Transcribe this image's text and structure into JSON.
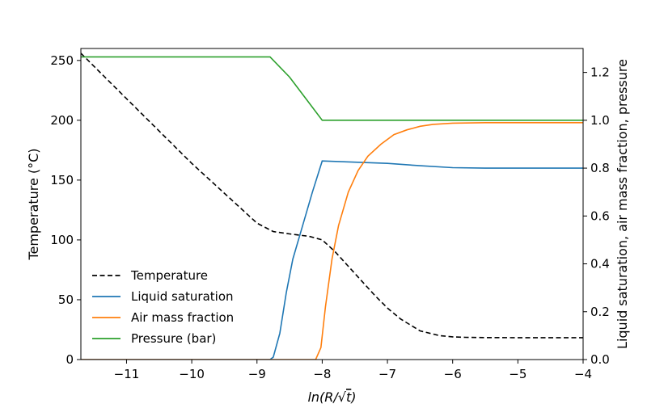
{
  "chart_data": {
    "type": "line",
    "xlabel": "ln(R/√t)",
    "xlabel_parts": {
      "prefix": "ln(R/",
      "radical": "√",
      "radicand": "t",
      "suffix": ")"
    },
    "ylabel_left": "Temperature (°C)",
    "ylabel_right": "Liquid saturation, air mass fraction, pressure",
    "xlim": [
      -11.7,
      -4
    ],
    "ylim_left": [
      0,
      260
    ],
    "ylim_right": [
      0,
      1.3
    ],
    "xticks": [
      -11,
      -10,
      -9,
      -8,
      -7,
      -6,
      -5,
      -4
    ],
    "xtick_labels": [
      "−11",
      "−10",
      "−9",
      "−8",
      "−7",
      "−6",
      "−5",
      "−4"
    ],
    "yticks_left": [
      0,
      50,
      100,
      150,
      200,
      250
    ],
    "ytick_labels_left": [
      "0",
      "50",
      "100",
      "150",
      "200",
      "250"
    ],
    "yticks_right": [
      0.0,
      0.2,
      0.4,
      0.6,
      0.8,
      1.0,
      1.2
    ],
    "ytick_labels_right": [
      "0.0",
      "0.2",
      "0.4",
      "0.6",
      "0.8",
      "1.0",
      "1.2"
    ],
    "grid": false,
    "legend_position": "lower-left",
    "series": [
      {
        "name": "Temperature",
        "axis": "left",
        "color": "#000000",
        "dash": "dashed",
        "x": [
          -11.7,
          -11.0,
          -10.0,
          -9.0,
          -8.75,
          -8.5,
          -8.2,
          -8.0,
          -7.8,
          -7.5,
          -7.2,
          -7.0,
          -6.8,
          -6.5,
          -6.2,
          -6.0,
          -5.8,
          -5.5,
          -5.0,
          -4.5,
          -4.0
        ],
        "y": [
          256,
          218,
          164,
          114,
          107,
          105,
          103,
          100,
          90,
          72,
          54,
          43,
          34,
          24,
          20,
          19,
          18.6,
          18.4,
          18.3,
          18.3,
          18.3
        ]
      },
      {
        "name": "Liquid saturation",
        "axis": "right",
        "color": "#1f77b4",
        "dash": "solid",
        "x": [
          -11.7,
          -8.8,
          -8.75,
          -8.65,
          -8.55,
          -8.45,
          -8.3,
          -8.15,
          -8.0,
          -7.5,
          -7.0,
          -6.5,
          -6.0,
          -5.5,
          -5.0,
          -4.5,
          -4.0
        ],
        "y": [
          0.0,
          0.0,
          0.01,
          0.11,
          0.28,
          0.42,
          0.56,
          0.7,
          0.83,
          0.825,
          0.82,
          0.81,
          0.802,
          0.8,
          0.8,
          0.8,
          0.8
        ]
      },
      {
        "name": "Air mass fraction",
        "axis": "right",
        "color": "#ff7f0e",
        "dash": "solid",
        "x": [
          -11.7,
          -8.1,
          -8.02,
          -7.95,
          -7.85,
          -7.75,
          -7.6,
          -7.45,
          -7.3,
          -7.1,
          -6.9,
          -6.7,
          -6.5,
          -6.3,
          -6.0,
          -5.5,
          -5.0,
          -4.5,
          -4.0
        ],
        "y": [
          0.0,
          0.0,
          0.05,
          0.22,
          0.42,
          0.56,
          0.7,
          0.79,
          0.85,
          0.9,
          0.94,
          0.96,
          0.975,
          0.983,
          0.988,
          0.99,
          0.99,
          0.99,
          0.99
        ]
      },
      {
        "name": "Pressure (bar)",
        "axis": "right",
        "color": "#2ca02c",
        "dash": "solid",
        "x": [
          -11.7,
          -8.8,
          -8.5,
          -8.0,
          -7.0,
          -6.0,
          -5.0,
          -4.0
        ],
        "y": [
          1.265,
          1.265,
          1.18,
          1.0,
          1.0,
          1.0,
          1.0,
          1.0
        ]
      }
    ]
  }
}
